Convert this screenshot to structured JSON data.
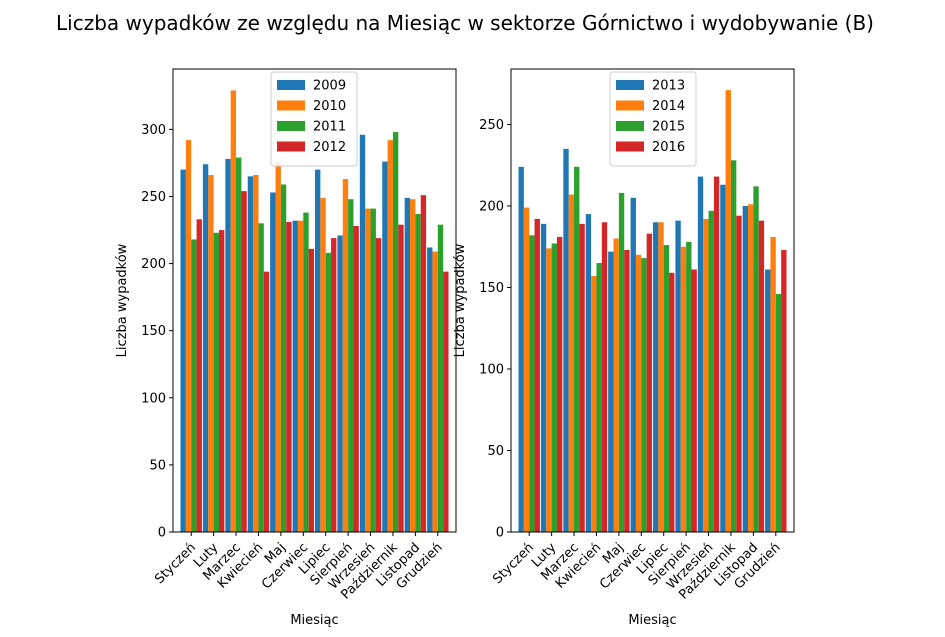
{
  "suptitle": "Liczba wypadków ze względu na Miesiąc w sektorze Górnictwo i wydobywanie (B)",
  "colors": [
    "#1f77b4",
    "#ff7f0e",
    "#2ca02c",
    "#d62728"
  ],
  "chart_data": [
    {
      "type": "bar",
      "xlabel": "Miesiąc",
      "ylabel": "Liczba wypadków",
      "ylim": [
        0,
        345
      ],
      "yticks": [
        0,
        50,
        100,
        150,
        200,
        250,
        300
      ],
      "legend": "top-center",
      "categories": [
        "Styczeń",
        "Luty",
        "Marzec",
        "Kwiecień",
        "Maj",
        "Czerwiec",
        "Lipiec",
        "Sierpień",
        "Wrzesień",
        "Październik",
        "Listopad",
        "Grudzień"
      ],
      "series": [
        {
          "name": "2009",
          "values": [
            270,
            274,
            278,
            265,
            253,
            232,
            270,
            221,
            296,
            276,
            249,
            212
          ]
        },
        {
          "name": "2010",
          "values": [
            292,
            266,
            329,
            266,
            275,
            232,
            249,
            263,
            241,
            292,
            248,
            209
          ]
        },
        {
          "name": "2011",
          "values": [
            218,
            223,
            279,
            230,
            259,
            238,
            208,
            248,
            241,
            298,
            237,
            229
          ]
        },
        {
          "name": "2012",
          "values": [
            233,
            225,
            254,
            194,
            231,
            211,
            219,
            228,
            219,
            229,
            251,
            194
          ]
        }
      ]
    },
    {
      "type": "bar",
      "xlabel": "Miesiąc",
      "ylabel": "Liczba wypadków",
      "ylim": [
        0,
        284
      ],
      "yticks": [
        0,
        50,
        100,
        150,
        200,
        250
      ],
      "legend": "top-center",
      "categories": [
        "Styczeń",
        "Luty",
        "Marzec",
        "Kwiecień",
        "Maj",
        "Czerwiec",
        "Lipiec",
        "Sierpień",
        "Wrzesień",
        "Październik",
        "Listopad",
        "Grudzień"
      ],
      "series": [
        {
          "name": "2013",
          "values": [
            224,
            189,
            235,
            195,
            172,
            205,
            190,
            191,
            218,
            213,
            200,
            161
          ]
        },
        {
          "name": "2014",
          "values": [
            199,
            174,
            207,
            157,
            180,
            170,
            190,
            175,
            192,
            271,
            201,
            181
          ]
        },
        {
          "name": "2015",
          "values": [
            182,
            177,
            224,
            165,
            208,
            168,
            176,
            178,
            197,
            228,
            212,
            146
          ]
        },
        {
          "name": "2016",
          "values": [
            192,
            181,
            189,
            190,
            173,
            183,
            159,
            161,
            218,
            194,
            191,
            173
          ]
        }
      ]
    }
  ]
}
